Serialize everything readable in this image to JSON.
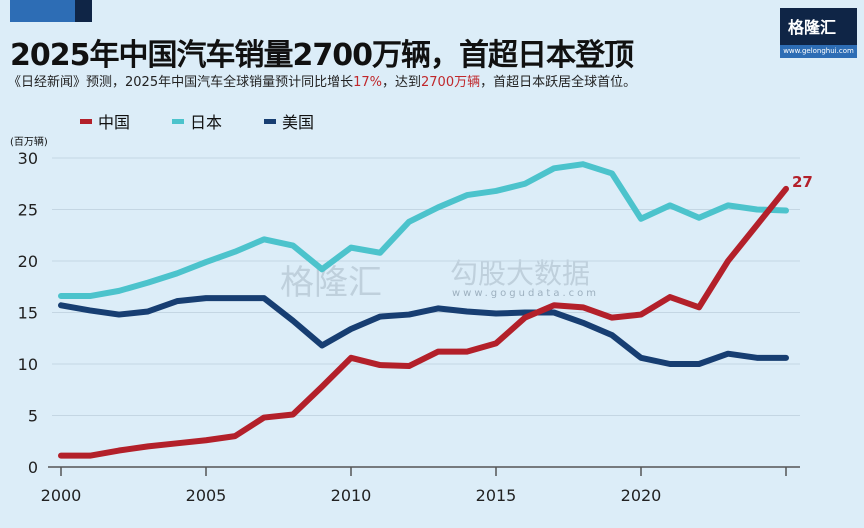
{
  "header": {
    "title": "2025年中国汽车销量2700万辆，首超日本登顶",
    "subtitle_parts": [
      "《日经新闻》预测，2025年中国汽车全球销量预计同比增长",
      "17%",
      "，达到",
      "2700万辆",
      "，首超日本跃居全球首位。"
    ]
  },
  "logo": {
    "name": "格隆汇",
    "url": "www.gelonghui.com"
  },
  "watermark": {
    "brand": "格隆汇",
    "data_brand": "勾股大数据",
    "url": "www.gogudata.com"
  },
  "colors": {
    "china": "#b3202a",
    "japan": "#4cc3cc",
    "usa": "#173e72",
    "accent_text": "#c0282c"
  },
  "chart_data": {
    "type": "line",
    "ylabel": "(百万辆)",
    "ylim": [
      0,
      30
    ],
    "yticks": [
      0,
      5,
      10,
      15,
      20,
      25,
      30
    ],
    "xlim": [
      2000,
      2025
    ],
    "xticks": [
      2000,
      2005,
      2010,
      2015,
      2020
    ],
    "grid": "horizontal",
    "legend_position": "top-left",
    "x": [
      2000,
      2001,
      2002,
      2003,
      2004,
      2005,
      2006,
      2007,
      2008,
      2009,
      2010,
      2011,
      2012,
      2013,
      2014,
      2015,
      2016,
      2017,
      2018,
      2019,
      2020,
      2021,
      2022,
      2023,
      2024,
      2025
    ],
    "series": [
      {
        "name": "中国",
        "color": "#b3202a",
        "values": [
          1.1,
          1.1,
          1.6,
          2.0,
          2.3,
          2.6,
          3.0,
          4.8,
          5.1,
          7.8,
          10.6,
          9.9,
          9.8,
          11.2,
          11.2,
          12.0,
          14.5,
          15.7,
          15.5,
          14.5,
          14.8,
          16.5,
          15.5,
          20.0,
          23.5,
          27.0
        ]
      },
      {
        "name": "日本",
        "color": "#4cc3cc",
        "values": [
          16.6,
          16.6,
          17.1,
          17.9,
          18.8,
          19.9,
          20.9,
          22.1,
          21.5,
          19.2,
          21.3,
          20.8,
          23.8,
          25.2,
          26.4,
          26.8,
          27.5,
          29.0,
          29.4,
          28.5,
          24.1,
          25.4,
          24.2,
          25.4,
          25.0,
          24.9
        ]
      },
      {
        "name": "美国",
        "color": "#173e72",
        "values": [
          15.7,
          15.2,
          14.8,
          15.1,
          16.1,
          16.4,
          16.4,
          16.4,
          14.2,
          11.8,
          13.4,
          14.6,
          14.8,
          15.4,
          15.1,
          14.9,
          15.0,
          15.0,
          14.0,
          12.8,
          10.6,
          10.0,
          10.0,
          11.0,
          10.6,
          10.6
        ]
      }
    ],
    "annotations": [
      {
        "series": "中国",
        "x": 2025,
        "text": "27"
      }
    ]
  }
}
